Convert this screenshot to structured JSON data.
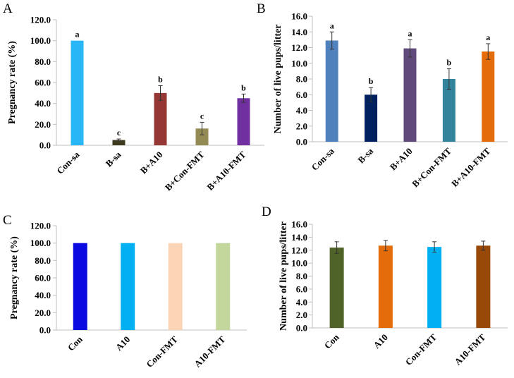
{
  "chart_data": [
    {
      "panel": "A",
      "type": "bar",
      "categories": [
        "Con-sa",
        "B-sa",
        "B+A10",
        "B+Con-FMT",
        "B+A10-FMT"
      ],
      "values": [
        100,
        5,
        50,
        16,
        45
      ],
      "errors": [
        0,
        1,
        7,
        6,
        4
      ],
      "significance": [
        "a",
        "c",
        "b",
        "c",
        "b"
      ],
      "colors": [
        "#29b6f6",
        "#3e3a1e",
        "#953735",
        "#948a54",
        "#7030a0"
      ],
      "ylabel": "Pregnancy rate (%)",
      "ylim": [
        0,
        120
      ],
      "yticks": [
        "0.0",
        "20.0",
        "40.0",
        "60.0",
        "80.0",
        "100.0",
        "120.0"
      ]
    },
    {
      "panel": "B",
      "type": "bar",
      "categories": [
        "Con-sa",
        "B-sa",
        "B+A10",
        "B+Con-FMT",
        "B+A10-FMT"
      ],
      "values": [
        12.9,
        6.0,
        11.9,
        8.0,
        11.5
      ],
      "errors": [
        1.1,
        0.9,
        1.1,
        1.3,
        1.0
      ],
      "significance": [
        "a",
        "b",
        "a",
        "b",
        "a"
      ],
      "colors": [
        "#4f81bd",
        "#002060",
        "#604a7b",
        "#31849b",
        "#e46c0a"
      ],
      "ylabel": "Number of live pups/litter",
      "ylim": [
        0,
        16
      ],
      "yticks": [
        "0.0",
        "2.0",
        "4.0",
        "6.0",
        "8.0",
        "10.0",
        "12.0",
        "14.0",
        "16.0"
      ]
    },
    {
      "panel": "C",
      "type": "bar",
      "categories": [
        "Con",
        "A10",
        "Con-FMT",
        "A10-FMT"
      ],
      "values": [
        100,
        100,
        100,
        100
      ],
      "errors": [
        0,
        0,
        0,
        0
      ],
      "significance": [
        "",
        "",
        "",
        ""
      ],
      "colors": [
        "#0a0ae0",
        "#00b0f0",
        "#fbd5b5",
        "#c3d69b"
      ],
      "ylabel": "Pregnancy rate (%)",
      "ylim": [
        0,
        120
      ],
      "yticks": [
        "0.0",
        "20.0",
        "40.0",
        "60.0",
        "80.0",
        "100.0",
        "120.0"
      ]
    },
    {
      "panel": "D",
      "type": "bar",
      "categories": [
        "Con",
        "A10",
        "Con-FMT",
        "A10-FMT"
      ],
      "values": [
        12.4,
        12.7,
        12.5,
        12.7
      ],
      "errors": [
        0.9,
        0.8,
        0.8,
        0.7
      ],
      "significance": [
        "",
        "",
        "",
        ""
      ],
      "colors": [
        "#4f6228",
        "#e46c0a",
        "#00b0f0",
        "#984807"
      ],
      "ylabel": "Number of live pups/litter",
      "ylim": [
        0,
        16
      ],
      "yticks": [
        "0.0",
        "2.0",
        "4.0",
        "6.0",
        "8.0",
        "10.0",
        "12.0",
        "14.0",
        "16.0"
      ]
    }
  ]
}
